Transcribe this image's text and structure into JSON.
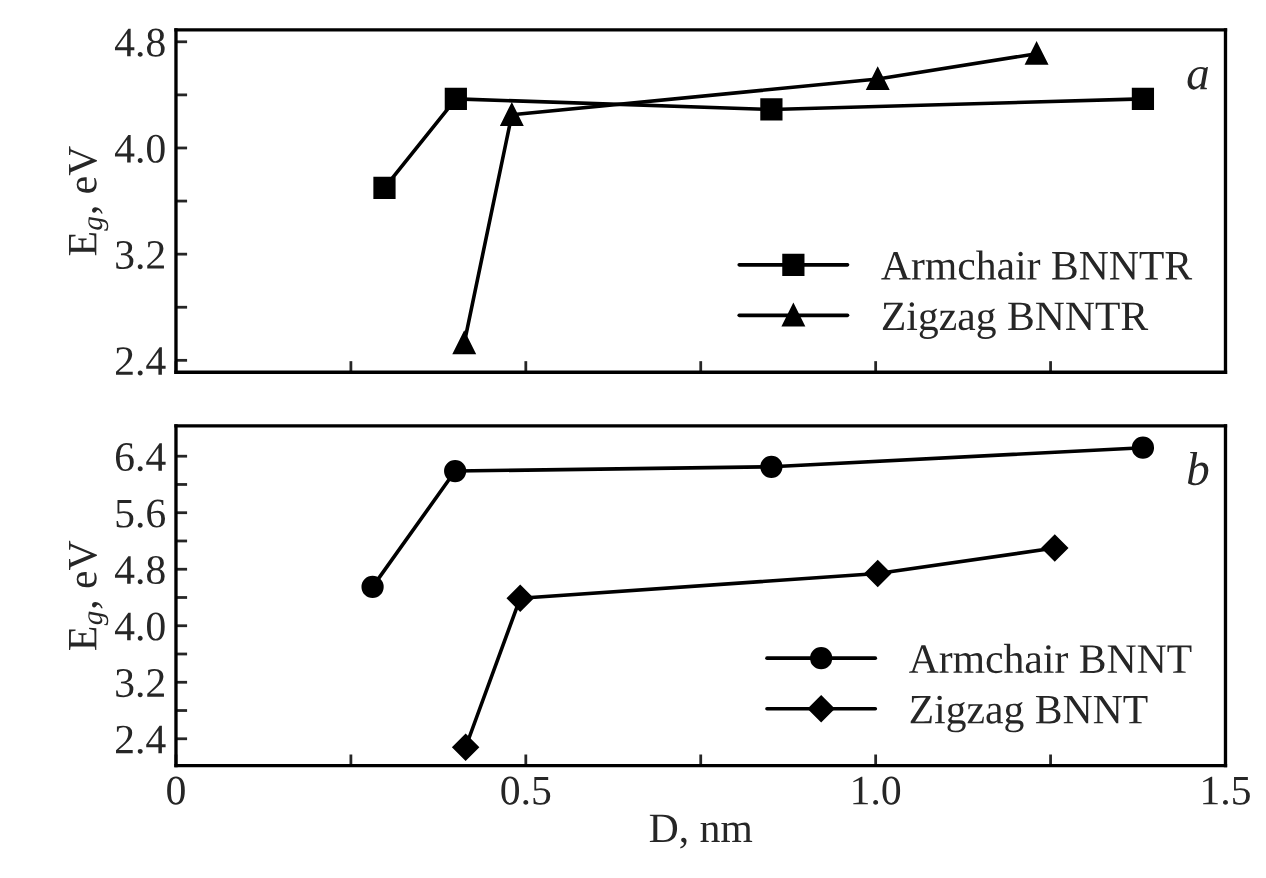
{
  "chart_data": [
    {
      "type": "line",
      "ylabel": "E$_{g}$, eV",
      "annotations": [
        "a"
      ],
      "legend": "bottom right",
      "grid": false,
      "tick_labels": "y",
      "xlim": [
        0,
        1.5
      ],
      "xticks": [
        {
          "value": 0,
          "label": null
        },
        {
          "value": 0.25,
          "label": null
        },
        {
          "value": 0.5,
          "label": null
        },
        {
          "value": 0.75,
          "label": null
        },
        {
          "value": 1.0,
          "label": null
        },
        {
          "value": 1.25,
          "label": null
        },
        {
          "value": 1.5,
          "label": null
        }
      ],
      "ylim": [
        2.31,
        4.89
      ],
      "yticks": [
        2.4,
        {
          "value": 2.8,
          "label": null
        },
        3.2,
        {
          "value": 3.6,
          "label": null
        },
        {
          "value": 4.0,
          "label": "4.0"
        },
        {
          "value": 4.4,
          "label": null
        },
        4.8
      ],
      "series": [
        {
          "name": "Armchair BNNTR",
          "color": "#000000",
          "marker": "square",
          "x": [
            0.298,
            0.4,
            0.851,
            1.382
          ],
          "values": [
            3.7,
            4.37,
            4.29,
            4.37
          ]
        },
        {
          "name": "Zigzag BNNTR",
          "color": "#000000",
          "marker": "triangle",
          "x": [
            0.412,
            0.48,
            1.003,
            1.23
          ],
          "values": [
            2.53,
            4.25,
            4.52,
            4.71
          ]
        }
      ]
    },
    {
      "type": "line",
      "xlabel": "D, nm",
      "ylabel": "E$_{g}$, eV",
      "annotations": [
        "b"
      ],
      "legend": "bottom right",
      "grid": false,
      "xlim": [
        0,
        1.5
      ],
      "xticks": [
        0,
        {
          "value": 0.25,
          "label": null
        },
        0.5,
        {
          "value": 0.75,
          "label": null
        },
        {
          "value": 1.0,
          "label": "1.0"
        },
        {
          "value": 1.25,
          "label": null
        },
        1.5
      ],
      "ylim": [
        2.02,
        6.83
      ],
      "yticks": [
        2.4,
        {
          "value": 2.8,
          "label": null
        },
        3.2,
        {
          "value": 3.6,
          "label": null
        },
        {
          "value": 4.0,
          "label": "4.0"
        },
        {
          "value": 4.4,
          "label": null
        },
        4.8,
        {
          "value": 5.2,
          "label": null
        },
        5.6,
        {
          "value": 6.0,
          "label": null
        },
        6.4
      ],
      "series": [
        {
          "name": "Armchair BNNT",
          "color": "#000000",
          "marker": "circle",
          "x": [
            0.281,
            0.399,
            0.851,
            1.382
          ],
          "values": [
            4.55,
            6.19,
            6.25,
            6.52
          ]
        },
        {
          "name": "Zigzag BNNT",
          "color": "#000000",
          "marker": "diamond",
          "x": [
            0.414,
            0.492,
            1.003,
            1.256
          ],
          "values": [
            2.28,
            4.39,
            4.74,
            5.1
          ]
        }
      ]
    }
  ]
}
